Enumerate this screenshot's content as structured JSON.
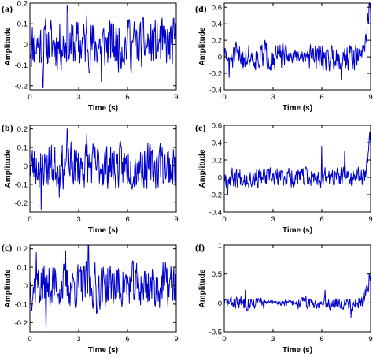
{
  "chart_data": [
    {
      "panel": "(a)",
      "type": "line",
      "xlabel": "Time (s)",
      "ylabel": "Amplitude",
      "xlim": [
        0,
        9
      ],
      "ylim": [
        -0.22,
        0.2
      ],
      "xticks": [
        "0",
        "3",
        "6",
        "9"
      ],
      "yticks": [
        "-0.2",
        "-0.1",
        "0",
        "0.1",
        "0.2"
      ],
      "ytick_values": [
        -0.2,
        -0.1,
        0,
        0.1,
        0.2
      ],
      "series": [
        {
          "color": "#0000cc",
          "samples": 300,
          "noise": 0.075,
          "seed": 11,
          "events": [
            {
              "t": 0.8,
              "v": -0.21
            },
            {
              "t": 2.3,
              "v": 0.19
            },
            {
              "t": 3.5,
              "v": 0.14
            },
            {
              "t": 4.4,
              "v": -0.18
            },
            {
              "t": 6.1,
              "v": 0.12
            }
          ]
        }
      ]
    },
    {
      "panel": "(b)",
      "type": "line",
      "xlabel": "Time (s)",
      "ylabel": "Amplitude",
      "xlim": [
        0,
        9
      ],
      "ylim": [
        -0.25,
        0.22
      ],
      "xticks": [
        "0",
        "3",
        "6",
        "9"
      ],
      "yticks": [
        "-0.2",
        "-0.1",
        "0",
        "0.1",
        "0.2"
      ],
      "ytick_values": [
        -0.2,
        -0.1,
        0,
        0.1,
        0.2
      ],
      "series": [
        {
          "color": "#0000cc",
          "samples": 300,
          "noise": 0.075,
          "seed": 23,
          "events": [
            {
              "t": 0.7,
              "v": -0.24
            },
            {
              "t": 1.8,
              "v": -0.17
            },
            {
              "t": 2.3,
              "v": 0.2
            },
            {
              "t": 3.5,
              "v": 0.17
            },
            {
              "t": 8.0,
              "v": 0.12
            }
          ]
        }
      ]
    },
    {
      "panel": "(c)",
      "type": "line",
      "xlabel": "Time (s)",
      "ylabel": "Amplitude",
      "xlim": [
        0,
        9
      ],
      "ylim": [
        -0.25,
        0.22
      ],
      "xticks": [
        "0",
        "3",
        "6",
        "9"
      ],
      "yticks": [
        "-0.2",
        "-0.1",
        "0",
        "0.1",
        "0.2"
      ],
      "ytick_values": [
        -0.2,
        -0.1,
        0,
        0.1,
        0.2
      ],
      "series": [
        {
          "color": "#0000cc",
          "samples": 300,
          "noise": 0.075,
          "seed": 37,
          "events": [
            {
              "t": 0.4,
              "v": 0.18
            },
            {
              "t": 1.0,
              "v": -0.24
            },
            {
              "t": 2.2,
              "v": 0.19
            },
            {
              "t": 3.6,
              "v": 0.22
            },
            {
              "t": 4.1,
              "v": -0.15
            }
          ]
        }
      ]
    },
    {
      "panel": "(d)",
      "type": "line",
      "xlabel": "Time (s)",
      "ylabel": "Amplitude",
      "xlim": [
        0,
        9
      ],
      "ylim": [
        -0.4,
        0.65
      ],
      "xticks": [
        "0",
        "3",
        "6",
        "9"
      ],
      "yticks": [
        "-0.4",
        "-0.2",
        "0",
        "0.2",
        "0.4",
        "0.6"
      ],
      "ytick_values": [
        -0.4,
        -0.2,
        0,
        0.2,
        0.4,
        0.6
      ],
      "series": [
        {
          "color": "#0000cc",
          "samples": 300,
          "noise": 0.1,
          "seed": 51,
          "quiet": [
            3.8,
            5.2
          ],
          "rise": {
            "t0": 8.2,
            "peak": 0.6
          },
          "events": [
            {
              "t": 0.3,
              "v": -0.25
            },
            {
              "t": 2.5,
              "v": 0.2
            },
            {
              "t": 7.2,
              "v": -0.28
            }
          ]
        }
      ]
    },
    {
      "panel": "(e)",
      "type": "line",
      "xlabel": "Time (s)",
      "ylabel": "Amplitude",
      "xlim": [
        0,
        9
      ],
      "ylim": [
        -0.4,
        0.6
      ],
      "xticks": [
        "0",
        "3",
        "6",
        "9"
      ],
      "yticks": [
        "-0.4",
        "-0.2",
        "0",
        "0.2",
        "0.4",
        "0.6"
      ],
      "ytick_values": [
        -0.4,
        -0.2,
        0,
        0.2,
        0.4,
        0.6
      ],
      "series": [
        {
          "color": "#0000cc",
          "samples": 300,
          "noise": 0.07,
          "seed": 67,
          "rise": {
            "t0": 8.4,
            "peak": 0.45
          },
          "events": [
            {
              "t": 6.0,
              "v": 0.36
            },
            {
              "t": 7.4,
              "v": 0.3
            },
            {
              "t": 0.2,
              "v": -0.2
            }
          ]
        }
      ]
    },
    {
      "panel": "(f)",
      "type": "line",
      "xlabel": "Time (s)",
      "ylabel": "Amplitude",
      "xlim": [
        0,
        9
      ],
      "ylim": [
        -0.5,
        1.0
      ],
      "xticks": [
        "0",
        "3",
        "6",
        "9"
      ],
      "yticks": [
        "-0.5",
        "0",
        "0.5",
        "1"
      ],
      "ytick_values": [
        -0.5,
        0,
        0.5,
        1
      ],
      "series": [
        {
          "color": "#0000cc",
          "samples": 300,
          "noise": 0.07,
          "seed": 83,
          "quiet": [
            2.5,
            4.5
          ],
          "rise": {
            "t0": 8.3,
            "peak": 0.55
          },
          "events": [
            {
              "t": 1.3,
              "v": 0.22
            },
            {
              "t": 6.2,
              "v": 0.22
            },
            {
              "t": 7.8,
              "v": -0.25
            }
          ]
        }
      ]
    }
  ]
}
